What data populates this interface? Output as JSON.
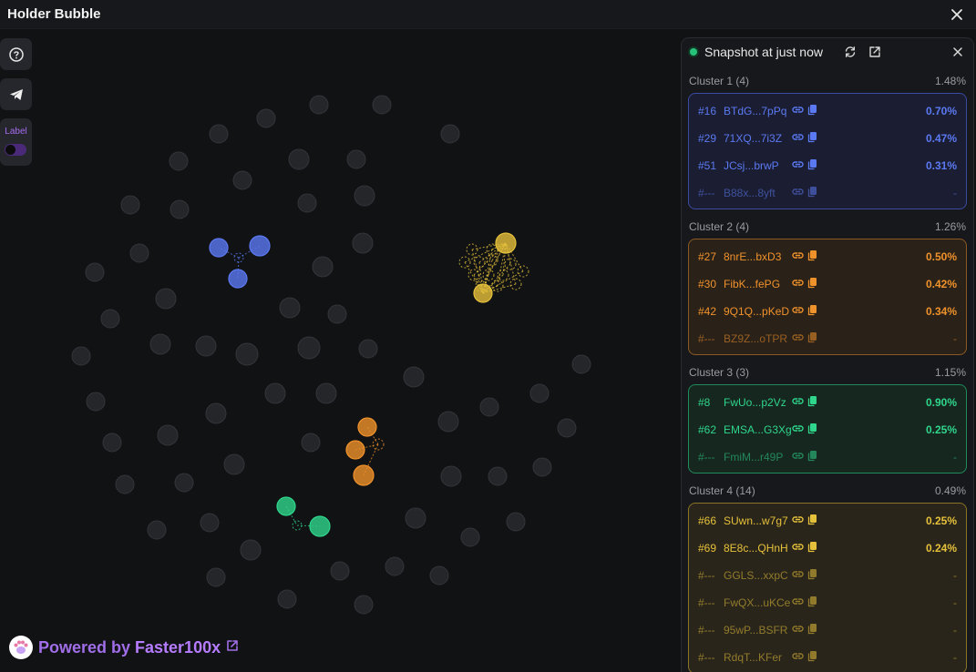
{
  "app": {
    "title": "Holder Bubble"
  },
  "toolbar": {
    "label_text": "Label",
    "label_toggle_on": false
  },
  "powered": {
    "prefix": "Powered by",
    "brand": "Faster100x"
  },
  "panel": {
    "snapshot_text": "Snapshot at just now",
    "clusters": [
      {
        "name": "Cluster 1 (4)",
        "percent": "1.48%",
        "color": "#5b79f2",
        "bg": "#1b1e33",
        "border": "#3a4aa0",
        "rows": [
          {
            "rank": "#16",
            "address": "BTdG...7pPq",
            "value": "0.70%",
            "dim": false
          },
          {
            "rank": "#29",
            "address": "71XQ...7i3Z",
            "value": "0.47%",
            "dim": false
          },
          {
            "rank": "#51",
            "address": "JCsj...brwP",
            "value": "0.31%",
            "dim": false
          },
          {
            "rank": "#---",
            "address": "B88x...8yft",
            "value": "-",
            "dim": true
          }
        ]
      },
      {
        "name": "Cluster 2 (4)",
        "percent": "1.26%",
        "color": "#f0922b",
        "bg": "#2a2118",
        "border": "#8a5a22",
        "rows": [
          {
            "rank": "#27",
            "address": "8nrE...bxD3",
            "value": "0.50%",
            "dim": false
          },
          {
            "rank": "#30",
            "address": "FibK...fePG",
            "value": "0.42%",
            "dim": false
          },
          {
            "rank": "#42",
            "address": "9Q1Q...pKeD",
            "value": "0.34%",
            "dim": false
          },
          {
            "rank": "#---",
            "address": "BZ9Z...oTPR",
            "value": "-",
            "dim": true
          }
        ]
      },
      {
        "name": "Cluster 3 (3)",
        "percent": "1.15%",
        "color": "#2fd68c",
        "bg": "#16271f",
        "border": "#1f8a5a",
        "rows": [
          {
            "rank": "#8",
            "address": "FwUo...p2Vz",
            "value": "0.90%",
            "dim": false
          },
          {
            "rank": "#62",
            "address": "EMSA...G3Xg",
            "value": "0.25%",
            "dim": false
          },
          {
            "rank": "#---",
            "address": "FmiM...r49P",
            "value": "-",
            "dim": true
          }
        ]
      },
      {
        "name": "Cluster 4 (14)",
        "percent": "0.49%",
        "color": "#e6c13b",
        "bg": "#29251a",
        "border": "#8a7426",
        "rows": [
          {
            "rank": "#66",
            "address": "SUwn...w7g7",
            "value": "0.25%",
            "dim": false
          },
          {
            "rank": "#69",
            "address": "8E8c...QHnH",
            "value": "0.24%",
            "dim": false
          },
          {
            "rank": "#---",
            "address": "GGLS...xxpC",
            "value": "-",
            "dim": true
          },
          {
            "rank": "#---",
            "address": "FwQX...uKCe",
            "value": "-",
            "dim": true
          },
          {
            "rank": "#---",
            "address": "95wP...BSFR",
            "value": "-",
            "dim": true
          },
          {
            "rank": "#---",
            "address": "RdqT...KFer",
            "value": "-",
            "dim": true
          }
        ]
      }
    ]
  },
  "icons": {
    "close": "close-icon",
    "help": "help-icon",
    "telegram": "telegram-icon",
    "refresh": "refresh-icon",
    "external": "external-link-icon",
    "link": "link-icon",
    "copy": "copy-icon",
    "paw": "paw-logo-icon"
  },
  "colors": {
    "background": "#111214",
    "panel": "#17181b",
    "cluster1": "#5b79f2",
    "cluster2": "#f0922b",
    "cluster3": "#2fd68c",
    "cluster4": "#e6c13b",
    "brand": "#a06ee8"
  }
}
